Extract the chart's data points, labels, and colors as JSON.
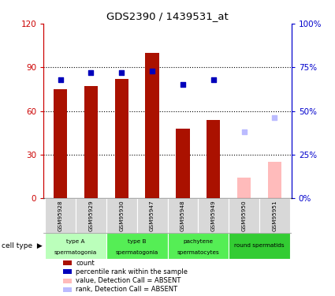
{
  "title": "GDS2390 / 1439531_at",
  "samples": [
    "GSM95928",
    "GSM95929",
    "GSM95930",
    "GSM95947",
    "GSM95948",
    "GSM95949",
    "GSM95950",
    "GSM95951"
  ],
  "count_values": [
    75,
    77,
    82,
    100,
    48,
    54,
    null,
    null
  ],
  "count_absent_values": [
    null,
    null,
    null,
    null,
    null,
    null,
    14,
    25
  ],
  "rank_values": [
    68,
    72,
    72,
    73,
    null,
    null,
    null,
    null
  ],
  "rank_values_present_mid": [
    null,
    null,
    null,
    null,
    65,
    68,
    null,
    null
  ],
  "rank_absent_values": [
    null,
    null,
    null,
    null,
    null,
    null,
    38,
    46
  ],
  "ylim_left": [
    0,
    120
  ],
  "ylim_right": [
    0,
    100
  ],
  "yticks_left": [
    0,
    30,
    60,
    90,
    120
  ],
  "ytick_labels_left": [
    "0",
    "30",
    "60",
    "90",
    "120"
  ],
  "yticks_right": [
    0,
    25,
    50,
    75,
    100
  ],
  "ytick_labels_right": [
    "0%",
    "25%",
    "50%",
    "75%",
    "100%"
  ],
  "bar_color_present": "#aa1100",
  "bar_color_absent": "#ffbbbb",
  "dot_color_present": "#0000bb",
  "dot_color_absent": "#bbbbff",
  "bar_width": 0.45,
  "left_axis_color": "#cc0000",
  "right_axis_color": "#0000cc",
  "cell_type_groups": [
    {
      "start": 0,
      "end": 1,
      "label1": "type A",
      "label2": "spermatogonia",
      "color": "#bbffbb"
    },
    {
      "start": 2,
      "end": 3,
      "label1": "type B",
      "label2": "spermatogonia",
      "color": "#55ee55"
    },
    {
      "start": 4,
      "end": 5,
      "label1": "pachytene",
      "label2": "spermatocytes",
      "color": "#55ee55"
    },
    {
      "start": 6,
      "end": 7,
      "label1": "round spermatids",
      "label2": "",
      "color": "#33cc33"
    }
  ],
  "legend_items": [
    {
      "color": "#aa1100",
      "label": "count",
      "marker": "s"
    },
    {
      "color": "#0000bb",
      "label": "percentile rank within the sample",
      "marker": "s"
    },
    {
      "color": "#ffbbbb",
      "label": "value, Detection Call = ABSENT",
      "marker": "s"
    },
    {
      "color": "#bbbbff",
      "label": "rank, Detection Call = ABSENT",
      "marker": "s"
    }
  ]
}
